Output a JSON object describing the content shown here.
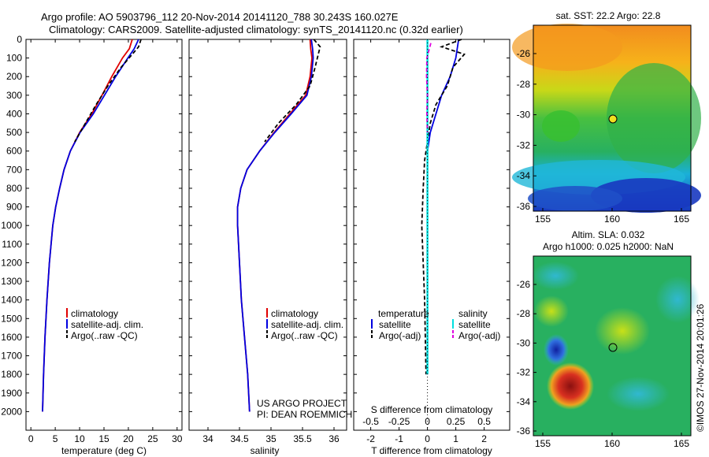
{
  "header": {
    "line1": "Argo profile: AO 5903796_112 20-Nov-2014 20141120_788 30.243S 160.027E",
    "line2": "Climatology: CARS2009. Satellite-adjusted climatology: synTS_20141120.nc (0.32d earlier)"
  },
  "colors": {
    "climatology": "#e00000",
    "satellite": "#0000e0",
    "argo": "#000000",
    "sal_satellite": "#00e0e0",
    "sal_argo": "#e000e0"
  },
  "chart_data": [
    {
      "type": "line",
      "panel": "temperature",
      "xlabel": "temperature (deg C)",
      "xlim": [
        -1,
        31
      ],
      "xticks": [
        0,
        5,
        10,
        15,
        20,
        25,
        30
      ],
      "ylim": [
        0,
        2100
      ],
      "yticks": [
        0,
        100,
        200,
        300,
        400,
        500,
        600,
        700,
        800,
        900,
        1000,
        1100,
        1200,
        1300,
        1400,
        1500,
        1600,
        1700,
        1800,
        1900,
        2000
      ],
      "legend": [
        "climatology",
        "satellite-adj. clim.",
        "Argo(..raw -QC)"
      ],
      "series": [
        {
          "name": "climatology",
          "depth": [
            0,
            50,
            100,
            200,
            300,
            400,
            500,
            600,
            700,
            800,
            900,
            1000,
            1200,
            1400,
            1600,
            1800,
            2000
          ],
          "values": [
            20.8,
            20.2,
            18.8,
            16.6,
            14.6,
            12.5,
            10.0,
            8.1,
            6.8,
            5.9,
            5.1,
            4.5,
            3.8,
            3.3,
            2.9,
            2.6,
            2.4
          ]
        },
        {
          "name": "satellite-adj. clim.",
          "depth": [
            0,
            50,
            100,
            200,
            300,
            400,
            500,
            600,
            700,
            800,
            900,
            1000,
            1200,
            1400,
            1600,
            1800,
            2000
          ],
          "values": [
            22.1,
            21.2,
            19.9,
            17.4,
            15.1,
            12.8,
            10.1,
            8.1,
            6.8,
            5.9,
            5.1,
            4.5,
            3.8,
            3.3,
            2.9,
            2.6,
            2.4
          ]
        },
        {
          "name": "Argo(..raw -QC)",
          "depth": [
            0,
            40,
            80,
            150,
            250,
            350,
            450,
            550
          ],
          "values": [
            22.6,
            22.1,
            20.8,
            18.5,
            15.8,
            13.4,
            11.2,
            9.0
          ]
        }
      ]
    },
    {
      "type": "line",
      "panel": "salinity",
      "xlabel": "salinity",
      "xlim": [
        33.7,
        36.2
      ],
      "xticks": [
        34,
        34.5,
        35,
        35.5,
        36
      ],
      "ylim": [
        0,
        2100
      ],
      "legend": [
        "climatology",
        "satellite-adj. clim.",
        "Argo(..raw -QC)"
      ],
      "annotation": [
        "US ARGO PROJECT",
        "PI: DEAN ROEMMICH"
      ],
      "series": [
        {
          "name": "climatology",
          "depth": [
            0,
            50,
            100,
            200,
            300,
            400,
            500,
            600,
            700,
            800,
            900,
            1000,
            1200,
            1400,
            1600,
            1800,
            2000
          ],
          "values": [
            35.62,
            35.63,
            35.65,
            35.62,
            35.55,
            35.3,
            35.05,
            34.82,
            34.62,
            34.52,
            34.47,
            34.47,
            34.5,
            34.53,
            34.58,
            34.63,
            34.66
          ]
        },
        {
          "name": "satellite-adj. clim.",
          "depth": [
            0,
            50,
            100,
            200,
            300,
            400,
            500,
            600,
            700,
            800,
            900,
            1000,
            1200,
            1400,
            1600,
            1800,
            2000
          ],
          "values": [
            35.64,
            35.66,
            35.67,
            35.64,
            35.57,
            35.32,
            35.06,
            34.82,
            34.62,
            34.52,
            34.47,
            34.47,
            34.5,
            34.53,
            34.58,
            34.63,
            34.66
          ]
        },
        {
          "name": "Argo(..raw -QC)",
          "depth": [
            0,
            40,
            80,
            150,
            250,
            350,
            450,
            550
          ],
          "values": [
            35.68,
            35.78,
            35.75,
            35.7,
            35.62,
            35.4,
            35.12,
            34.9
          ]
        }
      ]
    },
    {
      "type": "line",
      "panel": "difference",
      "xlabel": "T difference from climatology",
      "xlabel_top": "S difference from climatology",
      "xlim": [
        -2.6,
        2.9
      ],
      "xticks": [
        -2,
        -1,
        0,
        1,
        2
      ],
      "xticks_top": [
        "-0.5",
        "-0.25",
        "0",
        "0.25",
        "0.5"
      ],
      "ylim": [
        0,
        2100
      ],
      "legend": [
        "temperature",
        "satellite",
        "Argo(-adj)",
        "salinity",
        "satellite",
        "Argo(-adj)"
      ],
      "series": [
        {
          "name": "satellite",
          "quantity": "temperature",
          "depth": [
            0,
            100,
            200,
            300,
            400,
            500,
            600,
            700,
            900,
            1200,
            1500,
            1800
          ],
          "values": [
            1.1,
            1.0,
            0.8,
            0.5,
            0.3,
            0.1,
            0,
            0,
            0,
            0,
            0,
            0
          ]
        },
        {
          "name": "Argo(-adj)",
          "quantity": "temperature",
          "depth": [
            0,
            40,
            80,
            150,
            250,
            350,
            450,
            550,
            650,
            800,
            1000,
            1400,
            1800
          ],
          "values": [
            1.2,
            0.5,
            1.3,
            0.9,
            0.7,
            0.3,
            0.1,
            0,
            -0.1,
            -0.15,
            -0.2,
            -0.1,
            -0.05
          ]
        },
        {
          "name": "satellite",
          "quantity": "salinity",
          "depth": [
            0,
            300,
            600,
            900,
            1200,
            1500,
            1800
          ],
          "values": [
            0,
            0,
            0,
            0,
            0,
            0,
            0
          ]
        },
        {
          "name": "Argo(-adj)",
          "quantity": "salinity",
          "depth": [
            20,
            60,
            100,
            200,
            300,
            400,
            500
          ],
          "values": [
            0.12,
            0.05,
            -0.02,
            -0.03,
            0.0,
            -0.02,
            0.0
          ]
        }
      ]
    },
    {
      "type": "heatmap",
      "panel": "sst_map",
      "title": "sat. SST: 22.2  Argo: 22.8",
      "xticks": [
        "155",
        "160",
        "165"
      ],
      "yticks": [
        "-26",
        "-28",
        "-30",
        "-32",
        "-34",
        "-36"
      ],
      "marker": {
        "lon": 160.0,
        "lat": -30.2
      }
    },
    {
      "type": "heatmap",
      "panel": "sla_map",
      "title": [
        "Altim. SLA: 0.032",
        "Argo h1000: 0.025 h2000: NaN"
      ],
      "xticks": [
        "155",
        "160",
        "165"
      ],
      "yticks": [
        "-26",
        "-28",
        "-30",
        "-32",
        "-34",
        "-36"
      ],
      "marker": {
        "lon": 160.0,
        "lat": -30.2
      }
    }
  ],
  "footer_vertical": "©IMOS 27-Nov-2014 20:01:26"
}
